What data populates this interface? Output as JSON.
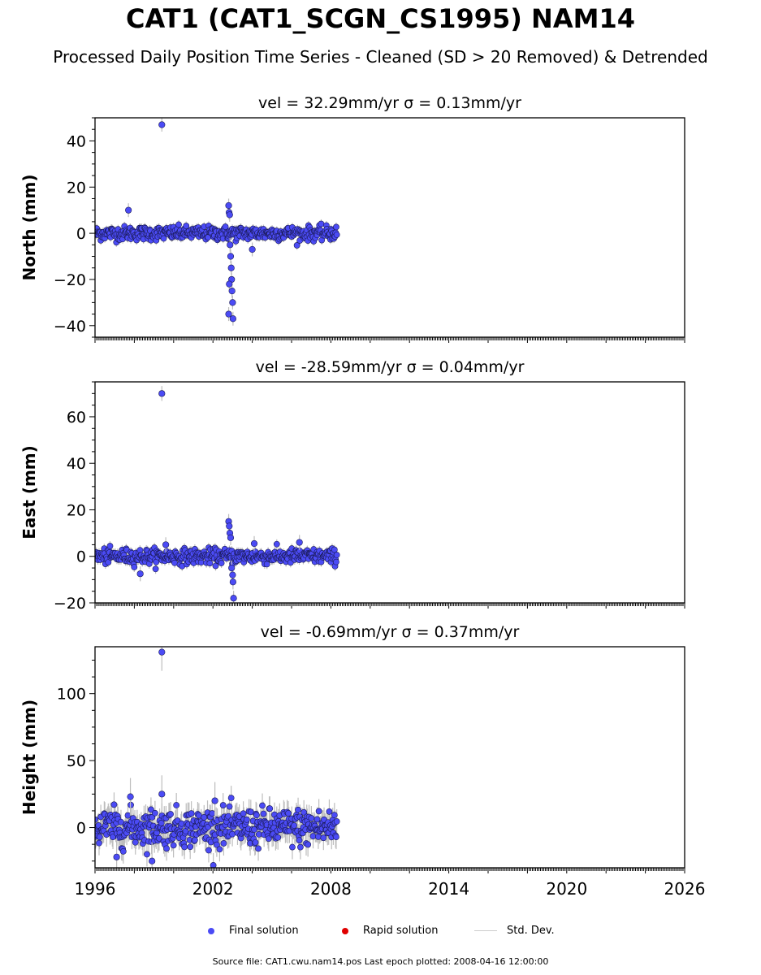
{
  "title": "CAT1 (CAT1_SCGN_CS1995) NAM14",
  "subtitle": "Processed Daily Position Time Series - Cleaned (SD > 20 Removed) & Detrended",
  "legend": {
    "final": "Final solution",
    "rapid": "Rapid solution",
    "std": "Std. Dev."
  },
  "source": "Source file: CAT1.cwu.nam14.pos  Last epoch plotted: 2008-04-16 12:00:00",
  "colors": {
    "final": "#4b4bf5",
    "rapid": "#e00000",
    "std": "#bdbdbd"
  },
  "chart_data": [
    {
      "type": "scatter",
      "panel": "north",
      "title": "vel = 32.29mm/yr   σ = 0.13mm/yr",
      "ylabel": "North (mm)",
      "xlim": [
        1996,
        2026
      ],
      "ylim": [
        -45,
        50
      ],
      "yticks": [
        -40,
        -20,
        0,
        20,
        40
      ],
      "xticks": [],
      "data_span": [
        1996.0,
        2008.3
      ],
      "noise_sd": 1.5,
      "series": [
        {
          "name": "Final solution",
          "x": [
            1997.7,
            1999.4,
            2002.8,
            2002.82,
            2002.85,
            2002.87,
            2002.9,
            2002.93,
            2002.95,
            2002.97,
            2003.0,
            2003.02,
            2002.8,
            2002.83,
            2004.0
          ],
          "y": [
            10,
            47,
            12,
            9,
            8,
            -5,
            -10,
            -15,
            -20,
            -25,
            -30,
            -37,
            -35,
            -22,
            -7
          ]
        }
      ]
    },
    {
      "type": "scatter",
      "panel": "east",
      "title": "vel = -28.59mm/yr   σ = 0.04mm/yr",
      "ylabel": "East (mm)",
      "xlim": [
        1996,
        2026
      ],
      "ylim": [
        -20,
        75
      ],
      "yticks": [
        -20,
        0,
        20,
        40,
        60
      ],
      "xticks": [],
      "data_span": [
        1996.0,
        2008.3
      ],
      "noise_sd": 1.6,
      "series": [
        {
          "name": "Final solution",
          "x": [
            1999.4,
            2002.8,
            2002.83,
            2002.86,
            2002.9,
            2002.95,
            2003.0,
            2003.02,
            2003.05,
            1998.3,
            2004.1,
            2006.4,
            1999.6
          ],
          "y": [
            70,
            15,
            13,
            10,
            8,
            -5,
            -8,
            -11,
            -18,
            -7.5,
            5.5,
            6,
            5
          ]
        }
      ]
    },
    {
      "type": "scatter",
      "panel": "height",
      "title": "vel = -0.69mm/yr   σ = 0.37mm/yr",
      "ylabel": "Height (mm)",
      "xlim": [
        1996,
        2026
      ],
      "ylim": [
        -30,
        135
      ],
      "yticks": [
        0,
        50,
        100
      ],
      "xticks": [
        1996,
        2002,
        2008,
        2014,
        2020,
        2026
      ],
      "xticklabels": [
        "1996",
        "2002",
        "2008",
        "2014",
        "2020",
        "2026"
      ],
      "data_span": [
        1996.0,
        2008.3
      ],
      "noise_sd": 7,
      "series": [
        {
          "name": "Final solution",
          "x": [
            1999.4,
            1999.4,
            1997.8,
            2002.1,
            1998.9,
            1997.1
          ],
          "y": [
            131,
            25,
            23,
            20,
            -25,
            -22
          ]
        }
      ]
    }
  ]
}
